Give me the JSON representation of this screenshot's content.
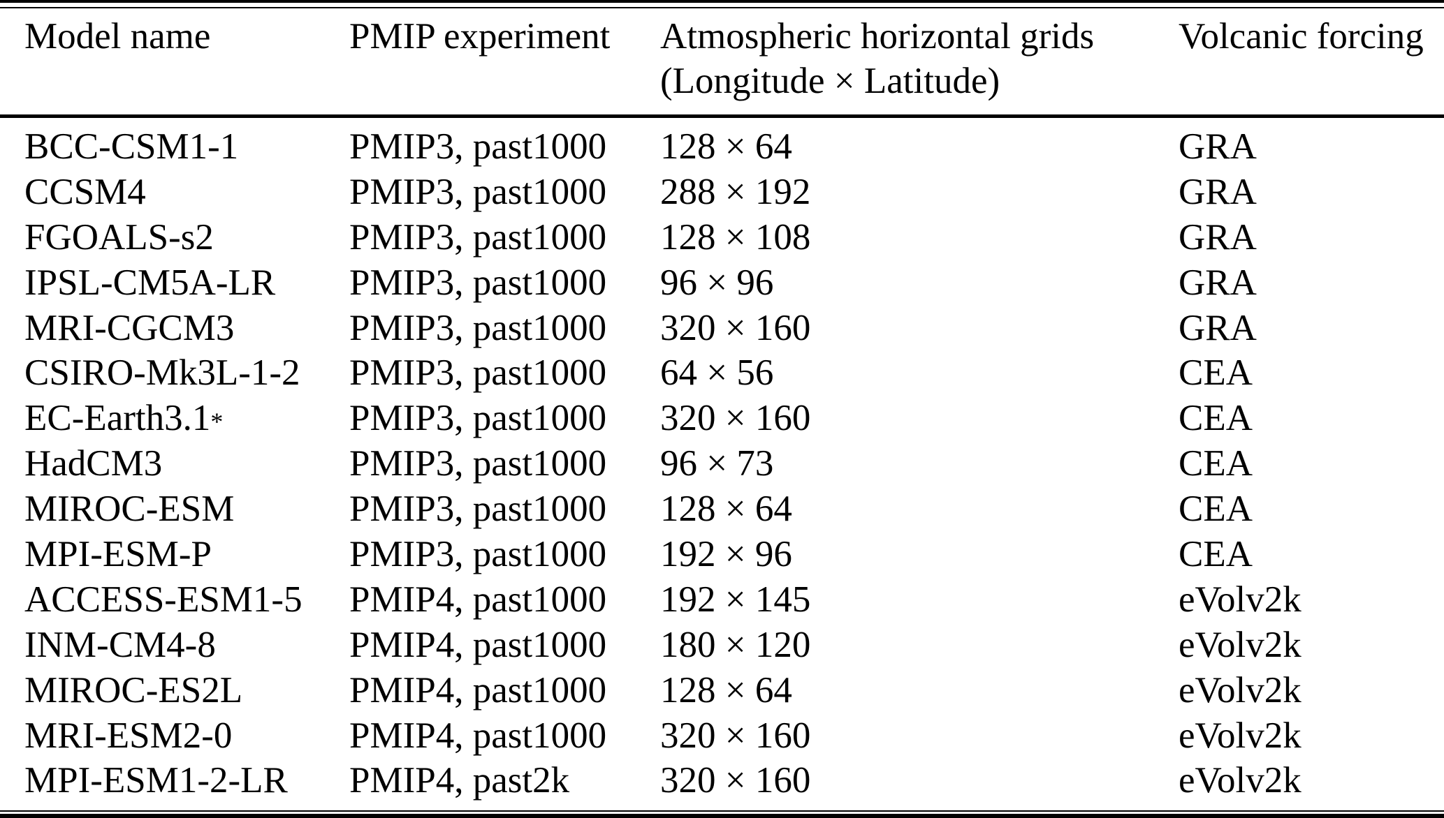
{
  "colors": {
    "background": "#ffffff",
    "text": "#000000",
    "rules": "#000000"
  },
  "table": {
    "header": {
      "col1": "Model name",
      "col2": "PMIP experiment",
      "col3_line1": "Atmospheric horizontal grids",
      "col3_line2": "(Longitude × Latitude)",
      "col4": "Volcanic forcing"
    },
    "rows": [
      {
        "model": "BCC-CSM1-1",
        "model_sup": "",
        "experiment": "PMIP3, past1000",
        "grid": "128 × 64",
        "forcing": "GRA"
      },
      {
        "model": "CCSM4",
        "model_sup": "",
        "experiment": "PMIP3, past1000",
        "grid": "288 × 192",
        "forcing": "GRA"
      },
      {
        "model": "FGOALS-s2",
        "model_sup": "",
        "experiment": "PMIP3, past1000",
        "grid": "128 × 108",
        "forcing": "GRA"
      },
      {
        "model": "IPSL-CM5A-LR",
        "model_sup": "",
        "experiment": "PMIP3, past1000",
        "grid": "96 × 96",
        "forcing": "GRA"
      },
      {
        "model": "MRI-CGCM3",
        "model_sup": "",
        "experiment": "PMIP3, past1000",
        "grid": "320 × 160",
        "forcing": "GRA"
      },
      {
        "model": "CSIRO-Mk3L-1-2",
        "model_sup": "",
        "experiment": "PMIP3, past1000",
        "grid": "64 × 56",
        "forcing": "CEA"
      },
      {
        "model": "EC-Earth3.1",
        "model_sup": "*",
        "experiment": "PMIP3, past1000",
        "grid": "320 × 160",
        "forcing": "CEA"
      },
      {
        "model": "HadCM3",
        "model_sup": "",
        "experiment": "PMIP3, past1000",
        "grid": "96 × 73",
        "forcing": "CEA"
      },
      {
        "model": "MIROC-ESM",
        "model_sup": "",
        "experiment": "PMIP3, past1000",
        "grid": "128 × 64",
        "forcing": "CEA"
      },
      {
        "model": "MPI-ESM-P",
        "model_sup": "",
        "experiment": "PMIP3, past1000",
        "grid": "192 × 96",
        "forcing": "CEA"
      },
      {
        "model": "ACCESS-ESM1-5",
        "model_sup": "",
        "experiment": "PMIP4, past1000",
        "grid": "192 × 145",
        "forcing": "eVolv2k"
      },
      {
        "model": "INM-CM4-8",
        "model_sup": "",
        "experiment": "PMIP4, past1000",
        "grid": "180 × 120",
        "forcing": "eVolv2k"
      },
      {
        "model": "MIROC-ES2L",
        "model_sup": "",
        "experiment": "PMIP4, past1000",
        "grid": "128 × 64",
        "forcing": "eVolv2k"
      },
      {
        "model": "MRI-ESM2-0",
        "model_sup": "",
        "experiment": "PMIP4, past1000",
        "grid": "320 × 160",
        "forcing": "eVolv2k"
      },
      {
        "model": "MPI-ESM1-2-LR",
        "model_sup": "",
        "experiment": "PMIP4, past2k",
        "grid": "320 × 160",
        "forcing": "eVolv2k"
      }
    ]
  }
}
